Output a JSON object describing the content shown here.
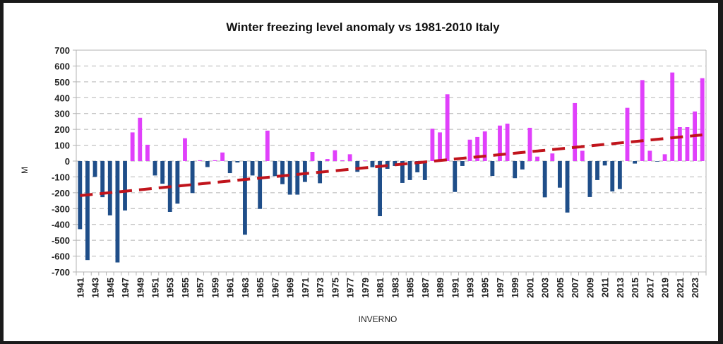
{
  "chart_data": {
    "type": "bar",
    "title": "Winter freezing level anomaly vs 1981-2010 Italy",
    "xlabel": "INVERNO",
    "ylabel": "M",
    "ylim": [
      -700,
      700
    ],
    "yticks": [
      700,
      600,
      500,
      400,
      300,
      200,
      100,
      0,
      -100,
      -200,
      -300,
      -400,
      -500,
      -600,
      -700
    ],
    "grid": true,
    "legend": "none",
    "colors": {
      "positive": "#e040fb",
      "negative": "#1f4e89",
      "trend": "#c0141c"
    },
    "categories": [
      1941,
      1942,
      1943,
      1944,
      1945,
      1946,
      1947,
      1948,
      1949,
      1950,
      1951,
      1952,
      1953,
      1954,
      1955,
      1956,
      1957,
      1958,
      1959,
      1960,
      1961,
      1962,
      1963,
      1964,
      1965,
      1966,
      1967,
      1968,
      1969,
      1970,
      1971,
      1972,
      1973,
      1974,
      1975,
      1976,
      1977,
      1978,
      1979,
      1980,
      1981,
      1982,
      1983,
      1984,
      1985,
      1986,
      1987,
      1988,
      1989,
      1990,
      1991,
      1992,
      1993,
      1994,
      1995,
      1996,
      1997,
      1998,
      1999,
      2000,
      2001,
      2002,
      2003,
      2004,
      2005,
      2006,
      2007,
      2008,
      2009,
      2010,
      2011,
      2012,
      2013,
      2014,
      2015,
      2016,
      2017,
      2018,
      2019,
      2020,
      2021,
      2022,
      2023,
      2024
    ],
    "xtick_labels": [
      "1941",
      "1943",
      "1945",
      "1947",
      "1949",
      "1951",
      "1953",
      "1955",
      "1957",
      "1959",
      "1961",
      "1963",
      "1965",
      "1967",
      "1969",
      "1971",
      "1973",
      "1975",
      "1977",
      "1979",
      "1981",
      "1983",
      "1985",
      "1987",
      "1989",
      "1991",
      "1993",
      "1995",
      "1997",
      "1999",
      "2001",
      "2003",
      "2005",
      "2007",
      "2009",
      "2011",
      "2013",
      "2015",
      "2017",
      "2019",
      "2021",
      "2023"
    ],
    "values": [
      -430,
      -625,
      -100,
      -228,
      -343,
      -640,
      -312,
      181,
      273,
      103,
      -91,
      -143,
      -321,
      -269,
      144,
      -202,
      5,
      -38,
      5,
      54,
      -76,
      -9,
      -465,
      -91,
      -302,
      192,
      -95,
      -146,
      -212,
      -212,
      -132,
      58,
      -140,
      13,
      68,
      5,
      43,
      -68,
      3,
      -39,
      -348,
      -49,
      -31,
      -138,
      -120,
      -71,
      -120,
      204,
      181,
      422,
      -195,
      -31,
      135,
      152,
      187,
      -94,
      224,
      236,
      -108,
      -53,
      210,
      28,
      -229,
      48,
      -168,
      -325,
      366,
      65,
      -227,
      -120,
      -28,
      -192,
      -177,
      336,
      -16,
      511,
      65,
      -3,
      43,
      559,
      214,
      214,
      313,
      523
    ],
    "trend": {
      "start_year": 1941,
      "start_value": -218,
      "end_year": 2024,
      "end_value": 165,
      "style": "dashed"
    }
  }
}
